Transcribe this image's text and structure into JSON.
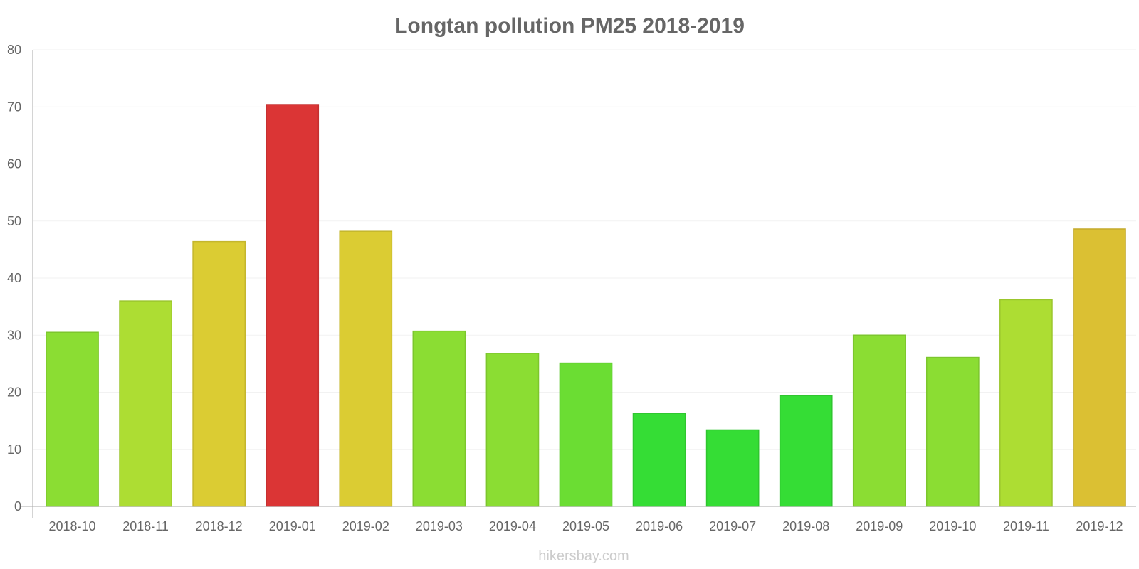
{
  "chart_data": {
    "type": "bar",
    "title": "Longtan pollution PM25 2018-2019",
    "xlabel": "",
    "ylabel": "",
    "ylim": [
      0,
      80
    ],
    "yticks": [
      0,
      10,
      20,
      30,
      40,
      50,
      60,
      70,
      80
    ],
    "categories": [
      "2018-10",
      "2018-11",
      "2018-12",
      "2019-01",
      "2019-02",
      "2019-03",
      "2019-04",
      "2019-05",
      "2019-06",
      "2019-07",
      "2019-08",
      "2019-09",
      "2019-10",
      "2019-11",
      "2019-12"
    ],
    "values": [
      30.5,
      36,
      46.4,
      70.4,
      48.2,
      30.7,
      26.8,
      25.1,
      16.3,
      13.4,
      19.4,
      30,
      26.1,
      36.2,
      48.6
    ],
    "colors": [
      "#8bdd33",
      "#addd33",
      "#dbcc33",
      "#db3535",
      "#dbcc33",
      "#8bdd33",
      "#8bdd33",
      "#6bdd33",
      "#35dd35",
      "#35dd35",
      "#35dd35",
      "#8bdd33",
      "#8bdd33",
      "#addd33",
      "#dbc033"
    ],
    "borders": [
      "#7cc62d",
      "#9bc62d",
      "#c4b62d",
      "#c42f2f",
      "#c4b62d",
      "#7cc62d",
      "#7cc62d",
      "#5fc62d",
      "#2fc62f",
      "#2fc62f",
      "#2fc62f",
      "#7cc62d",
      "#7cc62d",
      "#9bc62d",
      "#c4ab2d"
    ],
    "grid": true,
    "legend": "none"
  },
  "credit": "hikersbay.com"
}
